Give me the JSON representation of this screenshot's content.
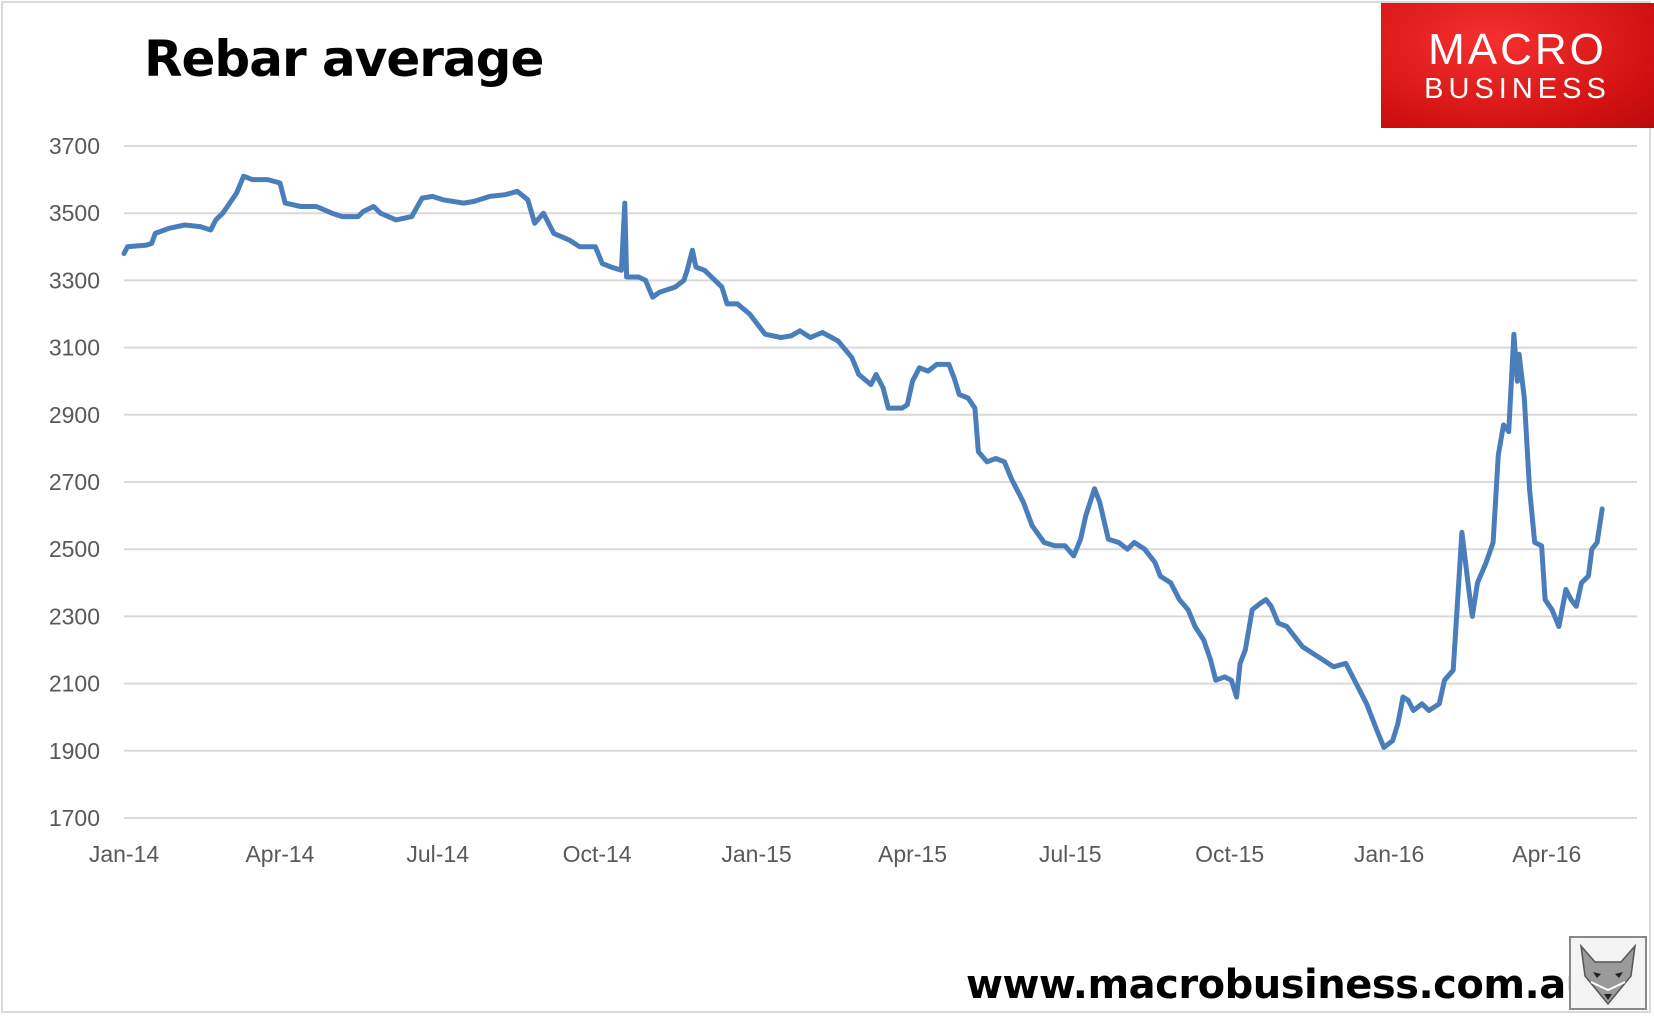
{
  "chart_data": {
    "type": "line",
    "title": "Rebar average",
    "xlabel": "",
    "ylabel": "",
    "ylim": [
      1700,
      3700
    ],
    "yticks": [
      1700,
      1900,
      2100,
      2300,
      2500,
      2700,
      2900,
      3100,
      3300,
      3500,
      3700
    ],
    "xticks": [
      {
        "date": "2014-01-01",
        "label": "Jan-14"
      },
      {
        "date": "2014-04-01",
        "label": "Apr-14"
      },
      {
        "date": "2014-07-01",
        "label": "Jul-14"
      },
      {
        "date": "2014-10-01",
        "label": "Oct-14"
      },
      {
        "date": "2015-01-01",
        "label": "Jan-15"
      },
      {
        "date": "2015-04-01",
        "label": "Apr-15"
      },
      {
        "date": "2015-07-01",
        "label": "Jul-15"
      },
      {
        "date": "2015-10-01",
        "label": "Oct-15"
      },
      {
        "date": "2016-01-01",
        "label": "Jan-16"
      },
      {
        "date": "2016-04-01",
        "label": "Apr-16"
      }
    ],
    "grid": true,
    "line_color": "#4a7ebb",
    "series": [
      {
        "points": [
          [
            "2014-01-01",
            3380
          ],
          [
            "2014-01-03",
            3400
          ],
          [
            "2014-01-14",
            3405
          ],
          [
            "2014-01-17",
            3410
          ],
          [
            "2014-01-19",
            3440
          ],
          [
            "2014-01-27",
            3455
          ],
          [
            "2014-02-05",
            3465
          ],
          [
            "2014-02-14",
            3460
          ],
          [
            "2014-02-20",
            3450
          ],
          [
            "2014-02-23",
            3480
          ],
          [
            "2014-02-27",
            3500
          ],
          [
            "2014-03-03",
            3530
          ],
          [
            "2014-03-07",
            3560
          ],
          [
            "2014-03-11",
            3610
          ],
          [
            "2014-03-16",
            3600
          ],
          [
            "2014-03-25",
            3600
          ],
          [
            "2014-04-01",
            3590
          ],
          [
            "2014-04-04",
            3530
          ],
          [
            "2014-04-13",
            3520
          ],
          [
            "2014-04-22",
            3520
          ],
          [
            "2014-05-01",
            3500
          ],
          [
            "2014-05-07",
            3490
          ],
          [
            "2014-05-16",
            3490
          ],
          [
            "2014-05-19",
            3505
          ],
          [
            "2014-05-25",
            3520
          ],
          [
            "2014-05-29",
            3500
          ],
          [
            "2014-06-07",
            3480
          ],
          [
            "2014-06-16",
            3490
          ],
          [
            "2014-06-22",
            3545
          ],
          [
            "2014-06-28",
            3550
          ],
          [
            "2014-07-04",
            3540
          ],
          [
            "2014-07-16",
            3530
          ],
          [
            "2014-07-22",
            3535
          ],
          [
            "2014-07-31",
            3550
          ],
          [
            "2014-08-09",
            3555
          ],
          [
            "2014-08-16",
            3565
          ],
          [
            "2014-08-22",
            3540
          ],
          [
            "2014-08-26",
            3470
          ],
          [
            "2014-08-31",
            3500
          ],
          [
            "2014-09-06",
            3440
          ],
          [
            "2014-09-15",
            3420
          ],
          [
            "2014-09-21",
            3400
          ],
          [
            "2014-09-30",
            3400
          ],
          [
            "2014-10-04",
            3350
          ],
          [
            "2014-10-09",
            3340
          ],
          [
            "2014-10-15",
            3330
          ],
          [
            "2014-10-17",
            3530
          ],
          [
            "2014-10-18",
            3310
          ],
          [
            "2014-10-25",
            3310
          ],
          [
            "2014-10-29",
            3300
          ],
          [
            "2014-11-02",
            3250
          ],
          [
            "2014-11-06",
            3265
          ],
          [
            "2014-11-15",
            3280
          ],
          [
            "2014-11-20",
            3300
          ],
          [
            "2014-11-22",
            3330
          ],
          [
            "2014-11-25",
            3390
          ],
          [
            "2014-11-27",
            3340
          ],
          [
            "2014-12-02",
            3330
          ],
          [
            "2014-12-06",
            3310
          ],
          [
            "2014-12-12",
            3280
          ],
          [
            "2014-12-15",
            3230
          ],
          [
            "2014-12-21",
            3230
          ],
          [
            "2014-12-28",
            3200
          ],
          [
            "2015-01-06",
            3140
          ],
          [
            "2015-01-15",
            3130
          ],
          [
            "2015-01-21",
            3135
          ],
          [
            "2015-01-26",
            3150
          ],
          [
            "2015-02-01",
            3130
          ],
          [
            "2015-02-08",
            3145
          ],
          [
            "2015-02-17",
            3120
          ],
          [
            "2015-02-25",
            3070
          ],
          [
            "2015-03-01",
            3020
          ],
          [
            "2015-03-08",
            2990
          ],
          [
            "2015-03-11",
            3020
          ],
          [
            "2015-03-15",
            2980
          ],
          [
            "2015-03-18",
            2920
          ],
          [
            "2015-03-26",
            2920
          ],
          [
            "2015-03-29",
            2930
          ],
          [
            "2015-04-01",
            3000
          ],
          [
            "2015-04-05",
            3040
          ],
          [
            "2015-04-10",
            3030
          ],
          [
            "2015-04-15",
            3050
          ],
          [
            "2015-04-22",
            3050
          ],
          [
            "2015-04-25",
            3010
          ],
          [
            "2015-04-28",
            2960
          ],
          [
            "2015-05-03",
            2950
          ],
          [
            "2015-05-07",
            2920
          ],
          [
            "2015-05-09",
            2790
          ],
          [
            "2015-05-14",
            2760
          ],
          [
            "2015-05-19",
            2770
          ],
          [
            "2015-05-24",
            2760
          ],
          [
            "2015-05-28",
            2710
          ],
          [
            "2015-06-04",
            2640
          ],
          [
            "2015-06-09",
            2570
          ],
          [
            "2015-06-16",
            2520
          ],
          [
            "2015-06-22",
            2510
          ],
          [
            "2015-06-28",
            2510
          ],
          [
            "2015-07-03",
            2480
          ],
          [
            "2015-07-07",
            2530
          ],
          [
            "2015-07-10",
            2600
          ],
          [
            "2015-07-15",
            2680
          ],
          [
            "2015-07-18",
            2640
          ],
          [
            "2015-07-23",
            2530
          ],
          [
            "2015-07-29",
            2520
          ],
          [
            "2015-08-03",
            2500
          ],
          [
            "2015-08-07",
            2520
          ],
          [
            "2015-08-13",
            2500
          ],
          [
            "2015-08-19",
            2460
          ],
          [
            "2015-08-22",
            2420
          ],
          [
            "2015-08-28",
            2400
          ],
          [
            "2015-09-02",
            2350
          ],
          [
            "2015-09-07",
            2320
          ],
          [
            "2015-09-11",
            2270
          ],
          [
            "2015-09-16",
            2230
          ],
          [
            "2015-09-20",
            2170
          ],
          [
            "2015-09-23",
            2110
          ],
          [
            "2015-09-28",
            2120
          ],
          [
            "2015-10-02",
            2110
          ],
          [
            "2015-10-05",
            2060
          ],
          [
            "2015-10-07",
            2160
          ],
          [
            "2015-10-10",
            2200
          ],
          [
            "2015-10-14",
            2320
          ],
          [
            "2015-10-19",
            2340
          ],
          [
            "2015-10-22",
            2350
          ],
          [
            "2015-10-25",
            2330
          ],
          [
            "2015-10-29",
            2280
          ],
          [
            "2015-11-03",
            2270
          ],
          [
            "2015-11-12",
            2210
          ],
          [
            "2015-11-21",
            2180
          ],
          [
            "2015-11-30",
            2150
          ],
          [
            "2015-12-07",
            2160
          ],
          [
            "2015-12-13",
            2100
          ],
          [
            "2015-12-19",
            2040
          ],
          [
            "2015-12-25",
            1960
          ],
          [
            "2015-12-29",
            1910
          ],
          [
            "2016-01-03",
            1930
          ],
          [
            "2016-01-06",
            1980
          ],
          [
            "2016-01-09",
            2060
          ],
          [
            "2016-01-12",
            2050
          ],
          [
            "2016-01-15",
            2020
          ],
          [
            "2016-01-20",
            2040
          ],
          [
            "2016-01-24",
            2020
          ],
          [
            "2016-01-30",
            2040
          ],
          [
            "2016-02-02",
            2110
          ],
          [
            "2016-02-07",
            2140
          ],
          [
            "2016-02-12",
            2550
          ],
          [
            "2016-02-16",
            2380
          ],
          [
            "2016-02-18",
            2300
          ],
          [
            "2016-02-21",
            2400
          ],
          [
            "2016-02-26",
            2460
          ],
          [
            "2016-03-01",
            2520
          ],
          [
            "2016-03-04",
            2780
          ],
          [
            "2016-03-07",
            2870
          ],
          [
            "2016-03-10",
            2850
          ],
          [
            "2016-03-13",
            3140
          ],
          [
            "2016-03-15",
            3000
          ],
          [
            "2016-03-16",
            3080
          ],
          [
            "2016-03-19",
            2950
          ],
          [
            "2016-03-22",
            2680
          ],
          [
            "2016-03-25",
            2520
          ],
          [
            "2016-03-29",
            2510
          ],
          [
            "2016-03-31",
            2350
          ],
          [
            "2016-04-04",
            2320
          ],
          [
            "2016-04-08",
            2270
          ],
          [
            "2016-04-12",
            2380
          ],
          [
            "2016-04-15",
            2350
          ],
          [
            "2016-04-18",
            2330
          ],
          [
            "2016-04-21",
            2400
          ],
          [
            "2016-04-25",
            2420
          ],
          [
            "2016-04-27",
            2500
          ],
          [
            "2016-04-30",
            2520
          ],
          [
            "2016-05-03",
            2620
          ]
        ]
      }
    ]
  },
  "branding": {
    "logo_line1": "MACRO",
    "logo_line2": "BUSINESS",
    "website": "www.macrobusiness.com.au",
    "brand_color": "#e02020"
  }
}
